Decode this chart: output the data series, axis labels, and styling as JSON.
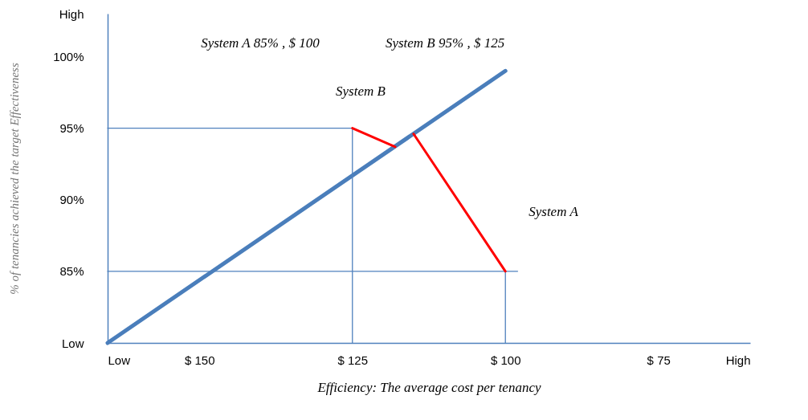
{
  "chart_data": {
    "type": "line",
    "xlabel": "Efficiency: The average cost per tenancy",
    "ylabel": "% of tenancies achieved the target Effectiveness",
    "xlim": [
      165,
      60
    ],
    "xticks": [
      {
        "value": 165,
        "label": "Low"
      },
      {
        "value": 150,
        "label": "$ 150"
      },
      {
        "value": 125,
        "label": "$ 125"
      },
      {
        "value": 100,
        "label": "$ 100"
      },
      {
        "value": 75,
        "label": "$ 75"
      },
      {
        "value": 60,
        "label": "High"
      }
    ],
    "ylim": [
      80,
      103
    ],
    "yticks": [
      {
        "value": 80,
        "label": "Low"
      },
      {
        "value": 85,
        "label": "85%"
      },
      {
        "value": 90,
        "label": "90%"
      },
      {
        "value": 95,
        "label": "95%"
      },
      {
        "value": 100,
        "label": "100%"
      },
      {
        "value": 103,
        "label": "High"
      }
    ],
    "grid": false,
    "marker": "none",
    "line_style": "solid",
    "series": [
      {
        "color": "#4a7ebb",
        "x": [
          165,
          100
        ],
        "values": [
          80,
          99
        ]
      },
      {
        "color": "#4f81bd",
        "x": [
          165,
          125
        ],
        "values": [
          95,
          95
        ]
      },
      {
        "color": "#4f81bd",
        "x": [
          125,
          125
        ],
        "values": [
          80,
          95
        ]
      },
      {
        "color": "#4f81bd",
        "x": [
          165,
          98
        ],
        "values": [
          85,
          85
        ]
      },
      {
        "color": "#4f81bd",
        "x": [
          100,
          100
        ],
        "values": [
          80,
          85
        ]
      },
      {
        "color": "#ff0000",
        "x": [
          125,
          118
        ],
        "values": [
          95,
          93.7
        ]
      },
      {
        "color": "#ff0000",
        "x": [
          100,
          115
        ],
        "values": [
          85,
          94.6
        ]
      }
    ],
    "annotations": [
      "System A 85% , $ 100",
      "System B 95% , $ 125",
      "System B",
      "System A"
    ]
  }
}
